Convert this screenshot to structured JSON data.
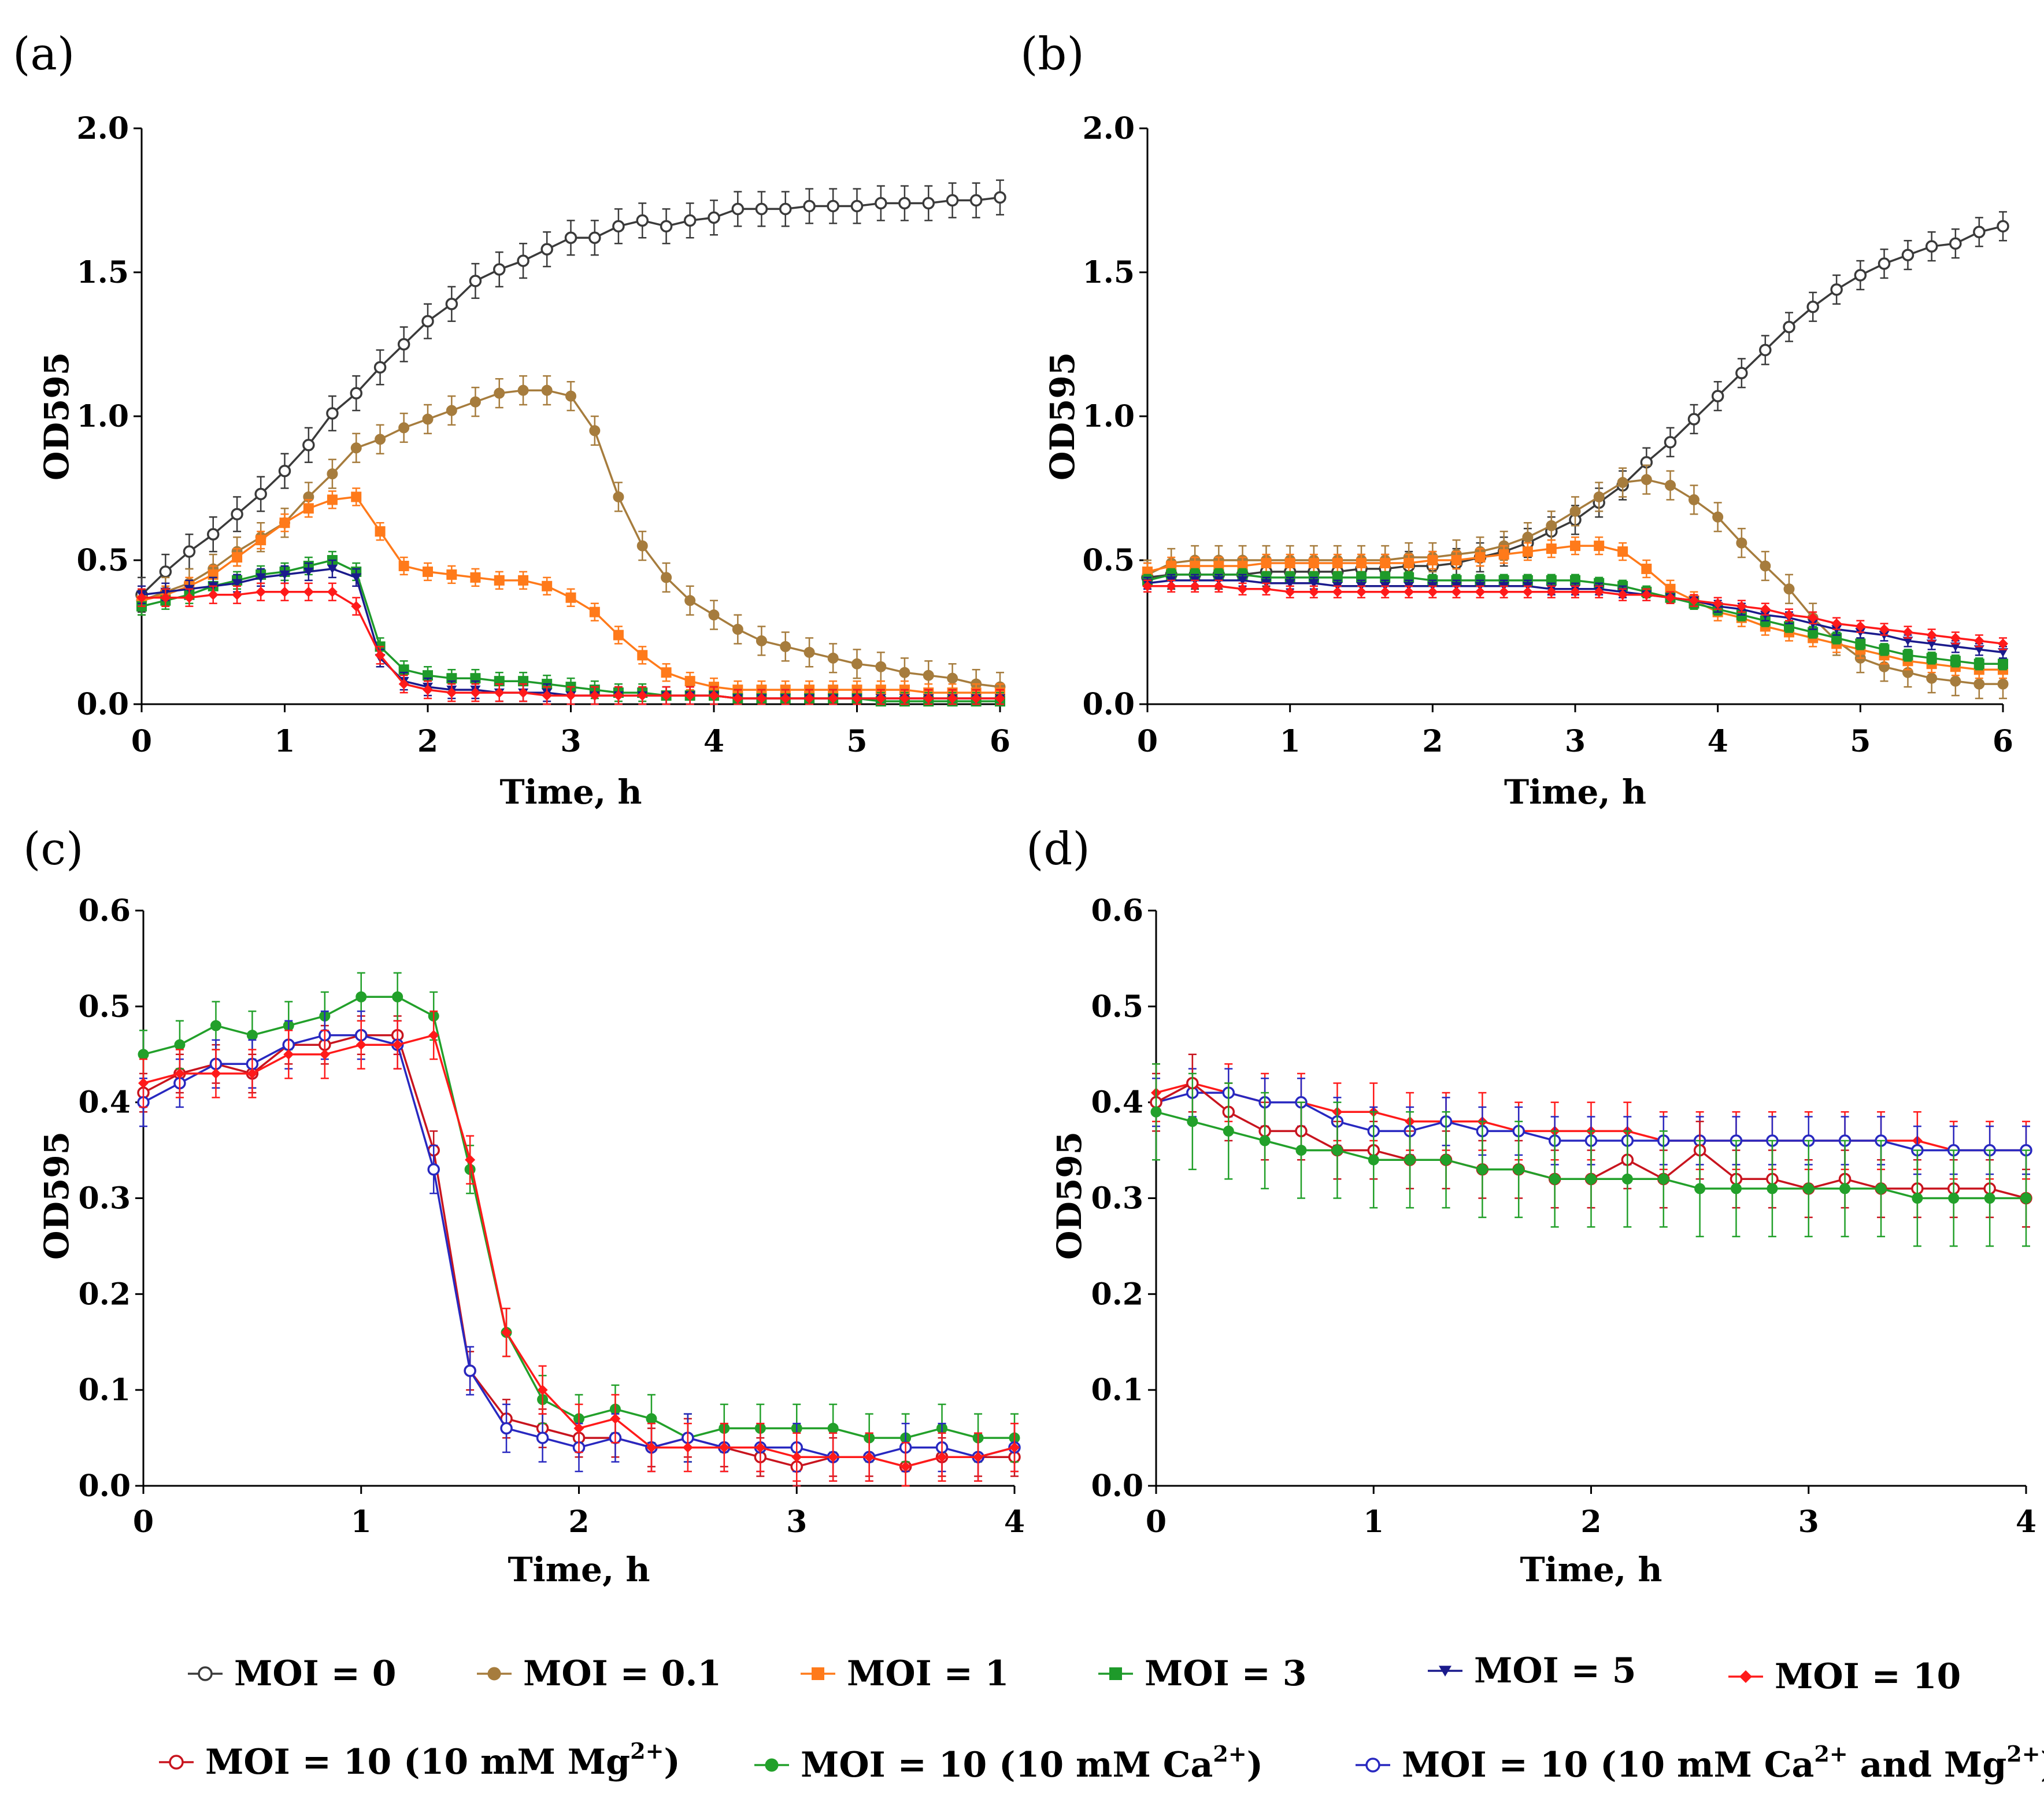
{
  "colors": {
    "moi0": "#3a3a3a",
    "moi01": "#a67c3d",
    "moi1": "#ff7a1a",
    "moi3": "#1e9a2a",
    "moi5": "#1a1a8c",
    "moi10": "#ff1a1a",
    "mg": "#c8141e",
    "ca": "#22a02a",
    "camg": "#2828c0"
  },
  "legend": {
    "row1": [
      {
        "key": "moi0",
        "label": "MOI = 0",
        "marker": "circle-open"
      },
      {
        "key": "moi01",
        "label": "MOI = 0.1",
        "marker": "circle"
      },
      {
        "key": "moi1",
        "label": "MOI = 1",
        "marker": "square"
      },
      {
        "key": "moi3",
        "label": "MOI = 3",
        "marker": "square"
      },
      {
        "key": "moi5",
        "label": "MOI = 5",
        "marker": "triangle-down"
      },
      {
        "key": "moi10",
        "label": "MOI = 10",
        "marker": "diamond"
      }
    ],
    "row2": [
      {
        "key": "mg",
        "label": "MOI = 10 (10 mM Mg",
        "sup": "2+",
        "tail": ")",
        "marker": "circle-open"
      },
      {
        "key": "ca",
        "label": "MOI = 10 (10 mM Ca",
        "sup": "2+",
        "tail": ")",
        "marker": "circle"
      },
      {
        "key": "camg",
        "label": "MOI = 10 (10 mM Ca",
        "sup": "2+",
        "mid": " and Mg",
        "sup2": "2+",
        "tail": ")",
        "marker": "circle-open"
      }
    ]
  },
  "chart_data": [
    {
      "panel": "(a)",
      "type": "line",
      "xlabel": "Time, h",
      "ylabel": "OD595",
      "xlim": [
        0,
        6
      ],
      "ylim": [
        0,
        2.0
      ],
      "xticks": [
        "0",
        "1",
        "2",
        "3",
        "4",
        "5",
        "6"
      ],
      "yticks": [
        "0.0",
        "0.5",
        "1.0",
        "1.5",
        "2.0"
      ],
      "x": [
        0,
        0.167,
        0.333,
        0.5,
        0.667,
        0.833,
        1,
        1.167,
        1.333,
        1.5,
        1.667,
        1.833,
        2,
        2.167,
        2.333,
        2.5,
        2.667,
        2.833,
        3,
        3.167,
        3.333,
        3.5,
        3.667,
        3.833,
        4,
        4.167,
        4.333,
        4.5,
        4.667,
        4.833,
        5,
        5.167,
        5.333,
        5.5,
        5.667,
        5.833,
        6
      ],
      "series": [
        {
          "key": "moi0",
          "name": "MOI = 0",
          "err": 0.06,
          "values": [
            0.38,
            0.46,
            0.53,
            0.59,
            0.66,
            0.73,
            0.81,
            0.9,
            1.01,
            1.08,
            1.17,
            1.25,
            1.33,
            1.39,
            1.47,
            1.51,
            1.54,
            1.58,
            1.62,
            1.62,
            1.66,
            1.68,
            1.66,
            1.68,
            1.69,
            1.72,
            1.72,
            1.72,
            1.73,
            1.73,
            1.73,
            1.74,
            1.74,
            1.74,
            1.75,
            1.75,
            1.76
          ]
        },
        {
          "key": "moi01",
          "name": "MOI = 0.1",
          "err": 0.05,
          "values": [
            0.36,
            0.39,
            0.42,
            0.47,
            0.53,
            0.58,
            0.63,
            0.72,
            0.8,
            0.89,
            0.92,
            0.96,
            0.99,
            1.02,
            1.05,
            1.08,
            1.09,
            1.09,
            1.07,
            0.95,
            0.72,
            0.55,
            0.44,
            0.36,
            0.31,
            0.26,
            0.22,
            0.2,
            0.18,
            0.16,
            0.14,
            0.13,
            0.11,
            0.1,
            0.09,
            0.07,
            0.06
          ]
        },
        {
          "key": "moi1",
          "name": "MOI = 1",
          "err": 0.03,
          "values": [
            0.36,
            0.38,
            0.41,
            0.45,
            0.51,
            0.57,
            0.63,
            0.68,
            0.71,
            0.72,
            0.6,
            0.48,
            0.46,
            0.45,
            0.44,
            0.43,
            0.43,
            0.41,
            0.37,
            0.32,
            0.24,
            0.17,
            0.11,
            0.08,
            0.06,
            0.05,
            0.05,
            0.05,
            0.05,
            0.05,
            0.05,
            0.05,
            0.05,
            0.04,
            0.04,
            0.04,
            0.04
          ]
        },
        {
          "key": "moi3",
          "name": "MOI = 3",
          "err": 0.03,
          "values": [
            0.34,
            0.36,
            0.38,
            0.41,
            0.43,
            0.45,
            0.46,
            0.48,
            0.5,
            0.46,
            0.2,
            0.12,
            0.1,
            0.09,
            0.09,
            0.08,
            0.08,
            0.07,
            0.06,
            0.05,
            0.04,
            0.04,
            0.03,
            0.03,
            0.03,
            0.02,
            0.02,
            0.02,
            0.02,
            0.02,
            0.02,
            0.01,
            0.01,
            0.01,
            0.01,
            0.01,
            0.01
          ]
        },
        {
          "key": "moi5",
          "name": "MOI = 5",
          "err": 0.03,
          "values": [
            0.38,
            0.39,
            0.4,
            0.41,
            0.42,
            0.44,
            0.45,
            0.46,
            0.47,
            0.44,
            0.16,
            0.08,
            0.06,
            0.05,
            0.05,
            0.04,
            0.04,
            0.04,
            0.03,
            0.03,
            0.03,
            0.03,
            0.03,
            0.03,
            0.03,
            0.02,
            0.02,
            0.02,
            0.02,
            0.02,
            0.02,
            0.02,
            0.02,
            0.02,
            0.02,
            0.02,
            0.02
          ]
        },
        {
          "key": "moi10",
          "name": "MOI = 10",
          "err": 0.03,
          "values": [
            0.37,
            0.37,
            0.37,
            0.38,
            0.38,
            0.39,
            0.39,
            0.39,
            0.39,
            0.34,
            0.17,
            0.07,
            0.05,
            0.04,
            0.04,
            0.04,
            0.04,
            0.03,
            0.03,
            0.03,
            0.03,
            0.03,
            0.03,
            0.03,
            0.03,
            0.02,
            0.02,
            0.02,
            0.02,
            0.02,
            0.02,
            0.02,
            0.02,
            0.02,
            0.02,
            0.02,
            0.02
          ]
        }
      ]
    },
    {
      "panel": "(b)",
      "type": "line",
      "xlabel": "Time, h",
      "ylabel": "OD595",
      "xlim": [
        0,
        6
      ],
      "ylim": [
        0,
        2.0
      ],
      "xticks": [
        "0",
        "1",
        "2",
        "3",
        "4",
        "5",
        "6"
      ],
      "yticks": [
        "0.0",
        "0.5",
        "1.0",
        "1.5",
        "2.0"
      ],
      "x": [
        0,
        0.167,
        0.333,
        0.5,
        0.667,
        0.833,
        1,
        1.167,
        1.333,
        1.5,
        1.667,
        1.833,
        2,
        2.167,
        2.333,
        2.5,
        2.667,
        2.833,
        3,
        3.167,
        3.333,
        3.5,
        3.667,
        3.833,
        4,
        4.167,
        4.333,
        4.5,
        4.667,
        4.833,
        5,
        5.167,
        5.333,
        5.5,
        5.667,
        5.833,
        6
      ],
      "series": [
        {
          "key": "moi0",
          "name": "MOI = 0",
          "err": 0.05,
          "values": [
            0.44,
            0.45,
            0.45,
            0.45,
            0.45,
            0.46,
            0.46,
            0.46,
            0.46,
            0.47,
            0.47,
            0.48,
            0.48,
            0.49,
            0.51,
            0.53,
            0.56,
            0.6,
            0.64,
            0.7,
            0.76,
            0.84,
            0.91,
            0.99,
            1.07,
            1.15,
            1.23,
            1.31,
            1.38,
            1.44,
            1.49,
            1.53,
            1.56,
            1.59,
            1.6,
            1.64,
            1.66
          ]
        },
        {
          "key": "moi01",
          "name": "MOI = 0.1",
          "err": 0.05,
          "values": [
            0.45,
            0.49,
            0.5,
            0.5,
            0.5,
            0.5,
            0.5,
            0.5,
            0.5,
            0.5,
            0.5,
            0.51,
            0.51,
            0.52,
            0.53,
            0.55,
            0.58,
            0.62,
            0.67,
            0.72,
            0.77,
            0.78,
            0.76,
            0.71,
            0.65,
            0.56,
            0.48,
            0.4,
            0.3,
            0.22,
            0.16,
            0.13,
            0.11,
            0.09,
            0.08,
            0.07,
            0.07
          ]
        },
        {
          "key": "moi1",
          "name": "MOI = 1",
          "err": 0.03,
          "values": [
            0.46,
            0.48,
            0.48,
            0.48,
            0.48,
            0.49,
            0.49,
            0.49,
            0.49,
            0.49,
            0.49,
            0.49,
            0.5,
            0.5,
            0.51,
            0.52,
            0.53,
            0.54,
            0.55,
            0.55,
            0.53,
            0.47,
            0.4,
            0.36,
            0.32,
            0.3,
            0.27,
            0.25,
            0.23,
            0.21,
            0.19,
            0.17,
            0.15,
            0.14,
            0.13,
            0.12,
            0.12
          ]
        },
        {
          "key": "moi3",
          "name": "MOI = 3",
          "err": 0.02,
          "values": [
            0.43,
            0.45,
            0.45,
            0.45,
            0.45,
            0.44,
            0.44,
            0.44,
            0.44,
            0.44,
            0.44,
            0.44,
            0.43,
            0.43,
            0.43,
            0.43,
            0.43,
            0.43,
            0.43,
            0.42,
            0.41,
            0.39,
            0.37,
            0.35,
            0.33,
            0.31,
            0.29,
            0.27,
            0.25,
            0.23,
            0.21,
            0.19,
            0.17,
            0.16,
            0.15,
            0.14,
            0.14
          ]
        },
        {
          "key": "moi5",
          "name": "MOI = 5",
          "err": 0.02,
          "values": [
            0.42,
            0.43,
            0.43,
            0.43,
            0.43,
            0.42,
            0.42,
            0.42,
            0.41,
            0.41,
            0.41,
            0.41,
            0.41,
            0.41,
            0.41,
            0.41,
            0.41,
            0.4,
            0.4,
            0.4,
            0.39,
            0.38,
            0.37,
            0.36,
            0.34,
            0.33,
            0.31,
            0.3,
            0.28,
            0.26,
            0.25,
            0.24,
            0.22,
            0.21,
            0.2,
            0.19,
            0.18
          ]
        },
        {
          "key": "moi10",
          "name": "MOI = 10",
          "err": 0.02,
          "values": [
            0.41,
            0.41,
            0.41,
            0.41,
            0.4,
            0.4,
            0.39,
            0.39,
            0.39,
            0.39,
            0.39,
            0.39,
            0.39,
            0.39,
            0.39,
            0.39,
            0.39,
            0.39,
            0.39,
            0.39,
            0.38,
            0.38,
            0.37,
            0.36,
            0.35,
            0.34,
            0.33,
            0.31,
            0.3,
            0.28,
            0.27,
            0.26,
            0.25,
            0.24,
            0.23,
            0.22,
            0.21
          ]
        }
      ]
    },
    {
      "panel": "(c)",
      "type": "line",
      "xlabel": "Time, h",
      "ylabel": "OD595",
      "xlim": [
        0,
        4
      ],
      "ylim": [
        0,
        0.6
      ],
      "xticks": [
        "0",
        "1",
        "2",
        "3",
        "4"
      ],
      "yticks": [
        "0.0",
        "0.1",
        "0.2",
        "0.3",
        "0.4",
        "0.5",
        "0.6"
      ],
      "x": [
        0,
        0.167,
        0.333,
        0.5,
        0.667,
        0.833,
        1,
        1.167,
        1.333,
        1.5,
        1.667,
        1.833,
        2,
        2.167,
        2.333,
        2.5,
        2.667,
        2.833,
        3,
        3.167,
        3.333,
        3.5,
        3.667,
        3.833,
        4
      ],
      "series": [
        {
          "key": "mg",
          "name": "MOI = 10 (10 mM Mg2+)",
          "err": 0.02,
          "values": [
            0.41,
            0.43,
            0.44,
            0.43,
            0.46,
            0.46,
            0.47,
            0.47,
            0.35,
            0.12,
            0.07,
            0.06,
            0.05,
            0.05,
            0.04,
            0.05,
            0.04,
            0.03,
            0.02,
            0.03,
            0.03,
            0.02,
            0.03,
            0.03,
            0.03
          ]
        },
        {
          "key": "ca",
          "name": "MOI = 10 (10 mM Ca2+)",
          "err": 0.025,
          "values": [
            0.45,
            0.46,
            0.48,
            0.47,
            0.48,
            0.49,
            0.51,
            0.51,
            0.49,
            0.33,
            0.16,
            0.09,
            0.07,
            0.08,
            0.07,
            0.05,
            0.06,
            0.06,
            0.06,
            0.06,
            0.05,
            0.05,
            0.06,
            0.05,
            0.05
          ]
        },
        {
          "key": "camg",
          "name": "MOI = 10 (10 mM Ca2+ and Mg2+)",
          "err": 0.025,
          "values": [
            0.4,
            0.42,
            0.44,
            0.44,
            0.46,
            0.47,
            0.47,
            0.46,
            0.33,
            0.12,
            0.06,
            0.05,
            0.04,
            0.05,
            0.04,
            0.05,
            0.04,
            0.04,
            0.04,
            0.03,
            0.03,
            0.04,
            0.04,
            0.03,
            0.04
          ]
        },
        {
          "key": "moi10",
          "name": "MOI = 10",
          "err": 0.025,
          "values": [
            0.42,
            0.43,
            0.43,
            0.43,
            0.45,
            0.45,
            0.46,
            0.46,
            0.47,
            0.34,
            0.16,
            0.1,
            0.06,
            0.07,
            0.04,
            0.04,
            0.04,
            0.04,
            0.03,
            0.03,
            0.03,
            0.02,
            0.03,
            0.03,
            0.04
          ]
        }
      ]
    },
    {
      "panel": "(d)",
      "type": "line",
      "xlabel": "Time, h",
      "ylabel": "OD595",
      "xlim": [
        0,
        4
      ],
      "ylim": [
        0,
        0.6
      ],
      "xticks": [
        "0",
        "1",
        "2",
        "3",
        "4"
      ],
      "yticks": [
        "0.0",
        "0.1",
        "0.2",
        "0.3",
        "0.4",
        "0.5",
        "0.6"
      ],
      "x": [
        0,
        0.167,
        0.333,
        0.5,
        0.667,
        0.833,
        1,
        1.167,
        1.333,
        1.5,
        1.667,
        1.833,
        2,
        2.167,
        2.333,
        2.5,
        2.667,
        2.833,
        3,
        3.167,
        3.333,
        3.5,
        3.667,
        3.833,
        4
      ],
      "series": [
        {
          "key": "moi10",
          "name": "MOI = 10",
          "err": 0.03,
          "values": [
            0.41,
            0.42,
            0.41,
            0.4,
            0.4,
            0.39,
            0.39,
            0.38,
            0.38,
            0.38,
            0.37,
            0.37,
            0.37,
            0.37,
            0.36,
            0.36,
            0.36,
            0.36,
            0.36,
            0.36,
            0.36,
            0.36,
            0.35,
            0.35,
            0.35
          ]
        },
        {
          "key": "camg",
          "name": "MOI = 10 (10 mM Ca2+ and Mg2+)",
          "err": 0.025,
          "values": [
            0.4,
            0.41,
            0.41,
            0.4,
            0.4,
            0.38,
            0.37,
            0.37,
            0.38,
            0.37,
            0.37,
            0.36,
            0.36,
            0.36,
            0.36,
            0.36,
            0.36,
            0.36,
            0.36,
            0.36,
            0.36,
            0.35,
            0.35,
            0.35,
            0.35
          ]
        },
        {
          "key": "mg",
          "name": "MOI = 10 (10 mM Mg2+)",
          "err": 0.03,
          "values": [
            0.4,
            0.42,
            0.39,
            0.37,
            0.37,
            0.35,
            0.35,
            0.34,
            0.34,
            0.33,
            0.33,
            0.32,
            0.32,
            0.34,
            0.32,
            0.35,
            0.32,
            0.32,
            0.31,
            0.32,
            0.31,
            0.31,
            0.31,
            0.31,
            0.3
          ]
        },
        {
          "key": "ca",
          "name": "MOI = 10 (10 mM Ca2+)",
          "err": 0.05,
          "values": [
            0.39,
            0.38,
            0.37,
            0.36,
            0.35,
            0.35,
            0.34,
            0.34,
            0.34,
            0.33,
            0.33,
            0.32,
            0.32,
            0.32,
            0.32,
            0.31,
            0.31,
            0.31,
            0.31,
            0.31,
            0.31,
            0.3,
            0.3,
            0.3,
            0.3
          ]
        }
      ]
    }
  ]
}
